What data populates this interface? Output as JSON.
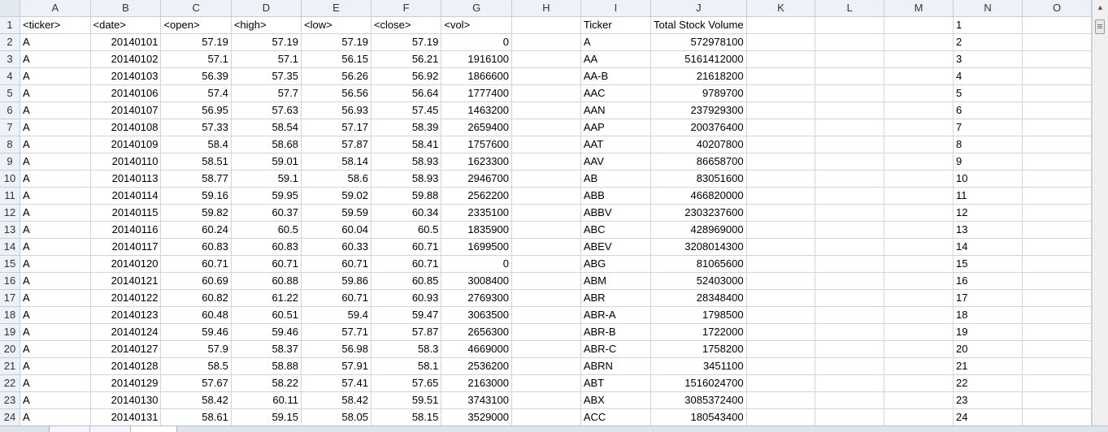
{
  "columns": [
    "A",
    "B",
    "C",
    "D",
    "E",
    "F",
    "G",
    "H",
    "I",
    "J",
    "K",
    "L",
    "M",
    "N",
    "O"
  ],
  "rows": [
    {
      "n": "1",
      "a": "<ticker>",
      "b": "<date>",
      "c": "<open>",
      "d": "<high>",
      "e": "<low>",
      "f": "<close>",
      "g": "<vol>",
      "i": "Ticker",
      "j": "Total Stock Volume"
    },
    {
      "n": "2",
      "a": "A",
      "b": "20140101",
      "c": "57.19",
      "d": "57.19",
      "e": "57.19",
      "f": "57.19",
      "g": "0",
      "i": "A",
      "j": "572978100"
    },
    {
      "n": "3",
      "a": "A",
      "b": "20140102",
      "c": "57.1",
      "d": "57.1",
      "e": "56.15",
      "f": "56.21",
      "g": "1916100",
      "i": "AA",
      "j": "5161412000"
    },
    {
      "n": "4",
      "a": "A",
      "b": "20140103",
      "c": "56.39",
      "d": "57.35",
      "e": "56.26",
      "f": "56.92",
      "g": "1866600",
      "i": "AA-B",
      "j": "21618200"
    },
    {
      "n": "5",
      "a": "A",
      "b": "20140106",
      "c": "57.4",
      "d": "57.7",
      "e": "56.56",
      "f": "56.64",
      "g": "1777400",
      "i": "AAC",
      "j": "9789700"
    },
    {
      "n": "6",
      "a": "A",
      "b": "20140107",
      "c": "56.95",
      "d": "57.63",
      "e": "56.93",
      "f": "57.45",
      "g": "1463200",
      "i": "AAN",
      "j": "237929300"
    },
    {
      "n": "7",
      "a": "A",
      "b": "20140108",
      "c": "57.33",
      "d": "58.54",
      "e": "57.17",
      "f": "58.39",
      "g": "2659400",
      "i": "AAP",
      "j": "200376400"
    },
    {
      "n": "8",
      "a": "A",
      "b": "20140109",
      "c": "58.4",
      "d": "58.68",
      "e": "57.87",
      "f": "58.41",
      "g": "1757600",
      "i": "AAT",
      "j": "40207800"
    },
    {
      "n": "9",
      "a": "A",
      "b": "20140110",
      "c": "58.51",
      "d": "59.01",
      "e": "58.14",
      "f": "58.93",
      "g": "1623300",
      "i": "AAV",
      "j": "86658700"
    },
    {
      "n": "10",
      "a": "A",
      "b": "20140113",
      "c": "58.77",
      "d": "59.1",
      "e": "58.6",
      "f": "58.93",
      "g": "2946700",
      "i": "AB",
      "j": "83051600"
    },
    {
      "n": "11",
      "a": "A",
      "b": "20140114",
      "c": "59.16",
      "d": "59.95",
      "e": "59.02",
      "f": "59.88",
      "g": "2562200",
      "i": "ABB",
      "j": "466820000"
    },
    {
      "n": "12",
      "a": "A",
      "b": "20140115",
      "c": "59.82",
      "d": "60.37",
      "e": "59.59",
      "f": "60.34",
      "g": "2335100",
      "i": "ABBV",
      "j": "2303237600"
    },
    {
      "n": "13",
      "a": "A",
      "b": "20140116",
      "c": "60.24",
      "d": "60.5",
      "e": "60.04",
      "f": "60.5",
      "g": "1835900",
      "i": "ABC",
      "j": "428969000"
    },
    {
      "n": "14",
      "a": "A",
      "b": "20140117",
      "c": "60.83",
      "d": "60.83",
      "e": "60.33",
      "f": "60.71",
      "g": "1699500",
      "i": "ABEV",
      "j": "3208014300"
    },
    {
      "n": "15",
      "a": "A",
      "b": "20140120",
      "c": "60.71",
      "d": "60.71",
      "e": "60.71",
      "f": "60.71",
      "g": "0",
      "i": "ABG",
      "j": "81065600"
    },
    {
      "n": "16",
      "a": "A",
      "b": "20140121",
      "c": "60.69",
      "d": "60.88",
      "e": "59.86",
      "f": "60.85",
      "g": "3008400",
      "i": "ABM",
      "j": "52403000"
    },
    {
      "n": "17",
      "a": "A",
      "b": "20140122",
      "c": "60.82",
      "d": "61.22",
      "e": "60.71",
      "f": "60.93",
      "g": "2769300",
      "i": "ABR",
      "j": "28348400"
    },
    {
      "n": "18",
      "a": "A",
      "b": "20140123",
      "c": "60.48",
      "d": "60.51",
      "e": "59.4",
      "f": "59.47",
      "g": "3063500",
      "i": "ABR-A",
      "j": "1798500"
    },
    {
      "n": "19",
      "a": "A",
      "b": "20140124",
      "c": "59.46",
      "d": "59.46",
      "e": "57.71",
      "f": "57.87",
      "g": "2656300",
      "i": "ABR-B",
      "j": "1722000"
    },
    {
      "n": "20",
      "a": "A",
      "b": "20140127",
      "c": "57.9",
      "d": "58.37",
      "e": "56.98",
      "f": "58.3",
      "g": "4669000",
      "i": "ABR-C",
      "j": "1758200"
    },
    {
      "n": "21",
      "a": "A",
      "b": "20140128",
      "c": "58.5",
      "d": "58.88",
      "e": "57.91",
      "f": "58.1",
      "g": "2536200",
      "i": "ABRN",
      "j": "3451100"
    },
    {
      "n": "22",
      "a": "A",
      "b": "20140129",
      "c": "57.67",
      "d": "58.22",
      "e": "57.41",
      "f": "57.65",
      "g": "2163000",
      "i": "ABT",
      "j": "1516024700"
    },
    {
      "n": "23",
      "a": "A",
      "b": "20140130",
      "c": "58.42",
      "d": "60.11",
      "e": "58.42",
      "f": "59.51",
      "g": "3743100",
      "i": "ABX",
      "j": "3085372400"
    },
    {
      "n": "24",
      "a": "A",
      "b": "20140131",
      "c": "58.61",
      "d": "59.15",
      "e": "58.05",
      "f": "58.15",
      "g": "3529000",
      "i": "ACC",
      "j": "180543400"
    }
  ],
  "colors": {
    "header_bg": "#eef2f8",
    "gridline": "#d4d4d4",
    "scrollbar": "#f0f0f0"
  },
  "icons": {
    "scroll_up": "triangle-up-icon",
    "scroll_down": "triangle-down-icon"
  }
}
